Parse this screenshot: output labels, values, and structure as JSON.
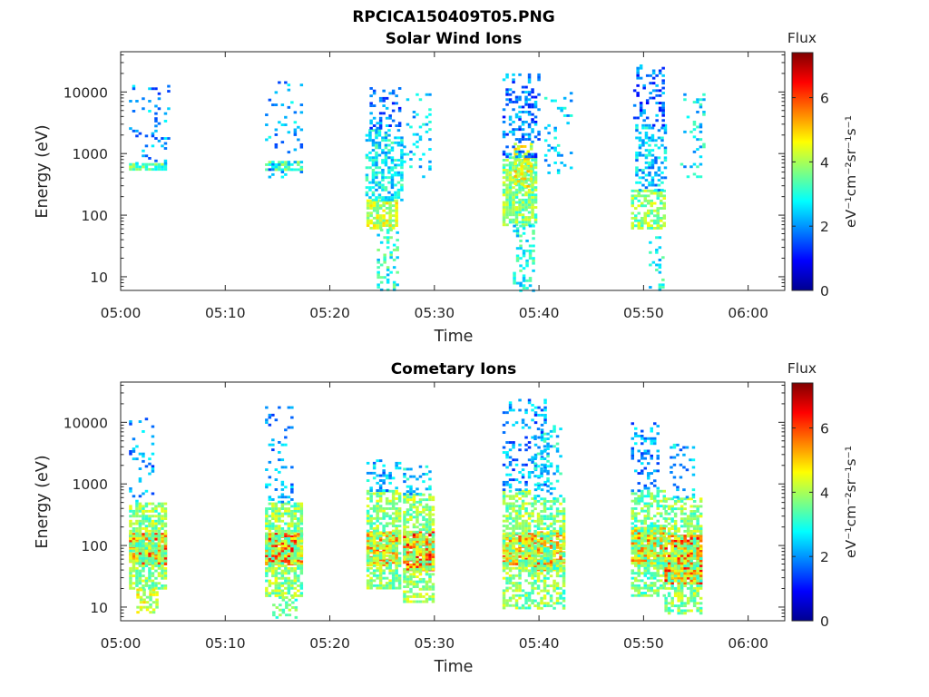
{
  "figure_title": "RPCICA150409T05.PNG",
  "chart_data": [
    {
      "type": "heatmap",
      "title": "Solar Wind Ions",
      "xlabel": "Time",
      "ylabel": "Energy (eV)",
      "x_ticks": [
        "05:00",
        "05:10",
        "05:20",
        "05:30",
        "05:40",
        "05:50",
        "06:00"
      ],
      "xlim_minutes": [
        0,
        63.5
      ],
      "y_ticks": [
        "10",
        "100",
        "1000",
        "10000"
      ],
      "y_tick_values": [
        10,
        100,
        1000,
        10000
      ],
      "ylim": [
        6,
        45000
      ],
      "y_scale": "log",
      "colorbar": {
        "label": "Flux",
        "unit": "eV⁻¹cm⁻²sr⁻¹s⁻¹",
        "ticks": [
          0,
          2,
          4,
          6
        ],
        "range": [
          0,
          7.4
        ],
        "colormap": "jet"
      },
      "clusters": [
        {
          "t0": 0.8,
          "t1": 4.4,
          "e0": 580,
          "e1": 700,
          "flux": 3.4,
          "density": 0.85
        },
        {
          "t0": 0.8,
          "t1": 4.5,
          "e0": 700,
          "e1": 13000,
          "flux": 2.0,
          "density": 0.12
        },
        {
          "t0": 13.8,
          "t1": 17.2,
          "e0": 560,
          "e1": 760,
          "flux": 3.3,
          "density": 0.7
        },
        {
          "t0": 13.8,
          "t1": 17.4,
          "e0": 400,
          "e1": 18000,
          "flux": 2.2,
          "density": 0.1
        },
        {
          "t0": 23.5,
          "t1": 26.5,
          "e0": 60,
          "e1": 180,
          "flux": 4.2,
          "density": 0.8
        },
        {
          "t0": 23.4,
          "t1": 26.8,
          "e0": 180,
          "e1": 2500,
          "flux": 2.7,
          "density": 0.55
        },
        {
          "t0": 23.8,
          "t1": 26.6,
          "e0": 2500,
          "e1": 12000,
          "flux": 1.8,
          "density": 0.3
        },
        {
          "t0": 24.5,
          "t1": 26.5,
          "e0": 6,
          "e1": 60,
          "flux": 3.0,
          "density": 0.3
        },
        {
          "t0": 27.0,
          "t1": 29.5,
          "e0": 400,
          "e1": 9500,
          "flux": 2.4,
          "density": 0.15
        },
        {
          "t0": 36.5,
          "t1": 39.6,
          "e0": 70,
          "e1": 900,
          "flux": 3.7,
          "density": 0.75
        },
        {
          "t0": 37.6,
          "t1": 39.4,
          "e0": 300,
          "e1": 1500,
          "flux": 4.4,
          "density": 0.6
        },
        {
          "t0": 36.5,
          "t1": 40.0,
          "e0": 900,
          "e1": 20000,
          "flux": 1.8,
          "density": 0.3
        },
        {
          "t0": 37.5,
          "t1": 39.5,
          "e0": 6,
          "e1": 70,
          "flux": 2.9,
          "density": 0.3
        },
        {
          "t0": 40.5,
          "t1": 43.0,
          "e0": 500,
          "e1": 10000,
          "flux": 2.5,
          "density": 0.12
        },
        {
          "t0": 48.8,
          "t1": 52.0,
          "e0": 60,
          "e1": 260,
          "flux": 3.8,
          "density": 0.6
        },
        {
          "t0": 49.2,
          "t1": 52.2,
          "e0": 260,
          "e1": 3000,
          "flux": 2.4,
          "density": 0.45
        },
        {
          "t0": 49.0,
          "t1": 52.0,
          "e0": 3000,
          "e1": 28000,
          "flux": 1.7,
          "density": 0.25
        },
        {
          "t0": 50.5,
          "t1": 51.8,
          "e0": 6,
          "e1": 60,
          "flux": 2.8,
          "density": 0.2
        },
        {
          "t0": 53.5,
          "t1": 55.8,
          "e0": 400,
          "e1": 9500,
          "flux": 2.6,
          "density": 0.15
        }
      ]
    },
    {
      "type": "heatmap",
      "title": "Cometary Ions",
      "xlabel": "Time",
      "ylabel": "Energy (eV)",
      "x_ticks": [
        "05:00",
        "05:10",
        "05:20",
        "05:30",
        "05:40",
        "05:50",
        "06:00"
      ],
      "xlim_minutes": [
        0,
        63.5
      ],
      "y_ticks": [
        "10",
        "100",
        "1000",
        "10000"
      ],
      "y_tick_values": [
        10,
        100,
        1000,
        10000
      ],
      "ylim": [
        6,
        45000
      ],
      "y_scale": "log",
      "colorbar": {
        "label": "Flux",
        "unit": "eV⁻¹cm⁻²sr⁻¹s⁻¹",
        "ticks": [
          0,
          2,
          4,
          6
        ],
        "range": [
          0,
          7.4
        ],
        "colormap": "jet"
      },
      "clusters": [
        {
          "t0": 0.8,
          "t1": 4.3,
          "e0": 50,
          "e1": 160,
          "flux": 5.6,
          "density": 0.9
        },
        {
          "t0": 0.8,
          "t1": 4.3,
          "e0": 20,
          "e1": 500,
          "flux": 3.8,
          "density": 0.7
        },
        {
          "t0": 1.5,
          "t1": 3.5,
          "e0": 8,
          "e1": 20,
          "flux": 4.2,
          "density": 0.5
        },
        {
          "t0": 0.8,
          "t1": 3.0,
          "e0": 500,
          "e1": 13000,
          "flux": 2.0,
          "density": 0.18
        },
        {
          "t0": 13.8,
          "t1": 17.4,
          "e0": 50,
          "e1": 160,
          "flux": 5.7,
          "density": 0.9
        },
        {
          "t0": 13.8,
          "t1": 17.4,
          "e0": 15,
          "e1": 500,
          "flux": 3.8,
          "density": 0.7
        },
        {
          "t0": 14.5,
          "t1": 16.8,
          "e0": 7,
          "e1": 15,
          "flux": 3.6,
          "density": 0.4
        },
        {
          "t0": 13.8,
          "t1": 16.5,
          "e0": 500,
          "e1": 20000,
          "flux": 2.1,
          "density": 0.15
        },
        {
          "t0": 23.5,
          "t1": 26.5,
          "e0": 50,
          "e1": 170,
          "flux": 5.3,
          "density": 0.9
        },
        {
          "t0": 23.5,
          "t1": 26.8,
          "e0": 20,
          "e1": 800,
          "flux": 3.8,
          "density": 0.65
        },
        {
          "t0": 23.5,
          "t1": 26.8,
          "e0": 800,
          "e1": 2500,
          "flux": 2.3,
          "density": 0.3
        },
        {
          "t0": 27.0,
          "t1": 30.0,
          "e0": 40,
          "e1": 170,
          "flux": 5.9,
          "density": 0.9
        },
        {
          "t0": 27.0,
          "t1": 30.0,
          "e0": 12,
          "e1": 700,
          "flux": 3.9,
          "density": 0.65
        },
        {
          "t0": 27.0,
          "t1": 29.5,
          "e0": 700,
          "e1": 2000,
          "flux": 2.5,
          "density": 0.3
        },
        {
          "t0": 36.5,
          "t1": 39.5,
          "e0": 50,
          "e1": 160,
          "flux": 5.4,
          "density": 0.85
        },
        {
          "t0": 36.5,
          "t1": 39.5,
          "e0": 10,
          "e1": 800,
          "flux": 3.8,
          "density": 0.6
        },
        {
          "t0": 36.5,
          "t1": 40.5,
          "e0": 800,
          "e1": 24000,
          "flux": 2.0,
          "density": 0.25
        },
        {
          "t0": 39.5,
          "t1": 42.5,
          "e0": 40,
          "e1": 170,
          "flux": 5.4,
          "density": 0.85
        },
        {
          "t0": 39.5,
          "t1": 42.5,
          "e0": 10,
          "e1": 600,
          "flux": 3.7,
          "density": 0.6
        },
        {
          "t0": 39.5,
          "t1": 42.0,
          "e0": 600,
          "e1": 9000,
          "flux": 2.6,
          "density": 0.25
        },
        {
          "t0": 48.8,
          "t1": 52.0,
          "e0": 50,
          "e1": 200,
          "flux": 5.2,
          "density": 0.85
        },
        {
          "t0": 48.8,
          "t1": 52.0,
          "e0": 15,
          "e1": 800,
          "flux": 3.6,
          "density": 0.6
        },
        {
          "t0": 48.8,
          "t1": 51.5,
          "e0": 800,
          "e1": 10000,
          "flux": 2.0,
          "density": 0.25
        },
        {
          "t0": 52.0,
          "t1": 55.5,
          "e0": 25,
          "e1": 150,
          "flux": 5.7,
          "density": 0.85
        },
        {
          "t0": 52.0,
          "t1": 55.5,
          "e0": 8,
          "e1": 600,
          "flux": 3.8,
          "density": 0.6
        },
        {
          "t0": 52.5,
          "t1": 54.8,
          "e0": 600,
          "e1": 4500,
          "flux": 2.3,
          "density": 0.2
        }
      ]
    }
  ]
}
